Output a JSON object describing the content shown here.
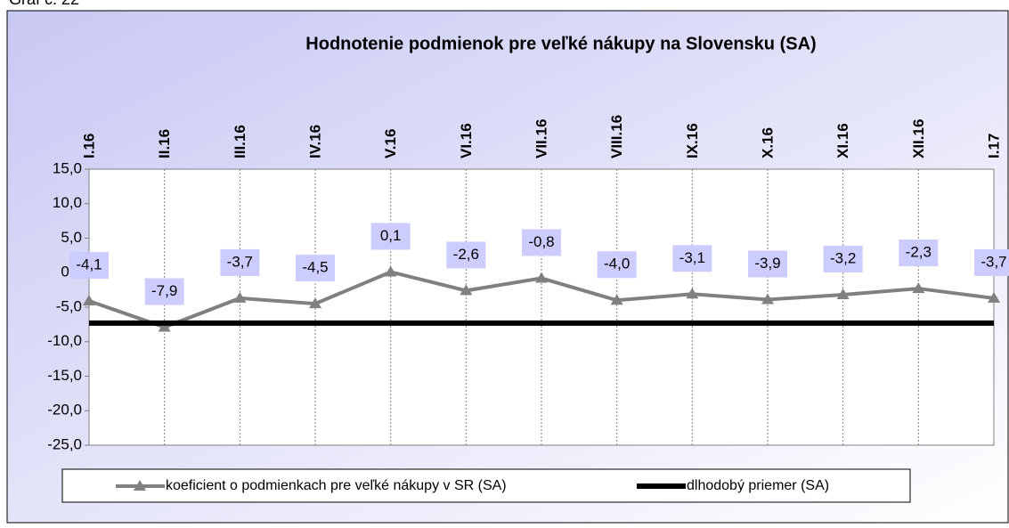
{
  "caption": "Graf č. 22",
  "chart_data": {
    "type": "line",
    "title": "Hodnotenie podmienok pre veľké nákupy na Slovensku (SA)",
    "categories": [
      "I.16",
      "II.16",
      "III.16",
      "IV.16",
      "V.16",
      "VI.16",
      "VII.16",
      "VIII.16",
      "IX.16",
      "X.16",
      "XI.16",
      "XII.16",
      "I.17"
    ],
    "series": [
      {
        "name": "koeficient o podmienkach pre veľké nákupy v SR (SA)",
        "color": "#808080",
        "values": [
          -4.1,
          -7.9,
          -3.7,
          -4.5,
          0.1,
          -2.6,
          -0.8,
          -4.0,
          -3.1,
          -3.9,
          -3.2,
          -2.3,
          -3.7
        ],
        "value_labels": [
          "-4,1",
          "-7,9",
          "-3,7",
          "-4,5",
          "0,1",
          "-2,6",
          "-0,8",
          "-4,0",
          "-3,1",
          "-3,9",
          "-3,2",
          "-2,3",
          "-3,7"
        ]
      },
      {
        "name": "dlhodobý priemer (SA)",
        "color": "#000000",
        "values": [
          -7.3,
          -7.3,
          -7.3,
          -7.3,
          -7.3,
          -7.3,
          -7.3,
          -7.3,
          -7.3,
          -7.3,
          -7.3,
          -7.3,
          -7.3
        ]
      }
    ],
    "ylim": [
      -25,
      15
    ],
    "yticks": [
      {
        "value": -25,
        "label": "-25,0"
      },
      {
        "value": -20,
        "label": "-20,0"
      },
      {
        "value": -15,
        "label": "-15,0"
      },
      {
        "value": -10,
        "label": "-10,0"
      },
      {
        "value": -5,
        "label": "-5,0"
      },
      {
        "value": 0,
        "label": "0,0"
      },
      {
        "value": 5,
        "label": "5,0"
      },
      {
        "value": 10,
        "label": "10,0"
      },
      {
        "value": 15,
        "label": "15,0"
      }
    ],
    "grid": true
  }
}
